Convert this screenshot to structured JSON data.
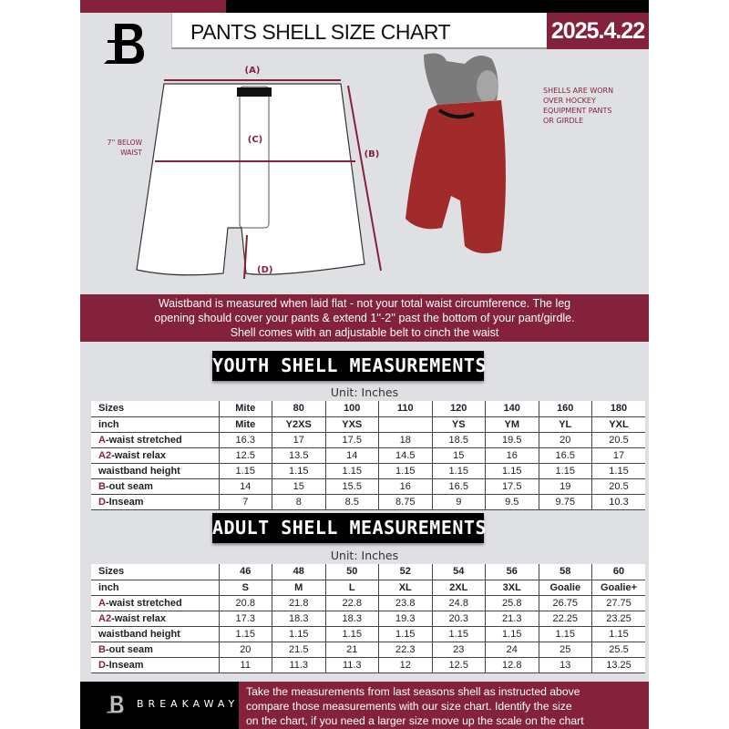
{
  "header": {
    "title": "PANTS SHELL SIZE CHART",
    "date": "2025.4.22",
    "brand": "BREAKAWAY"
  },
  "diagram": {
    "label_a": "(A)",
    "label_b": "(B)",
    "label_c": "(C)",
    "label_d": "(D)",
    "below_waist": [
      "7'' BELOW",
      "WAIST"
    ]
  },
  "photo_note": [
    "SHELLS ARE WORN",
    "OVER HOCKEY",
    "EQUIPMENT PANTS",
    "OR GIRDLE"
  ],
  "band_text": [
    "Waistband is measured when laid flat - not your total waist circumference. The leg",
    "opening should cover your pants & extend 1''-2'' past the bottom of your pant/girdle.",
    "Shell comes with an adjustable belt to cinch the waist"
  ],
  "youth": {
    "title": "YOUTH SHELL MEASUREMENTS",
    "unit": "Unit: Inches",
    "rows": [
      {
        "prefix": "",
        "label": "Sizes",
        "values": [
          "Mite",
          "80",
          "100",
          "110",
          "120",
          "140",
          "160",
          "180"
        ]
      },
      {
        "prefix": "",
        "label": "inch",
        "values": [
          "Mite",
          "Y2XS",
          "YXS",
          "",
          "YS",
          "YM",
          "YL",
          "YXL"
        ]
      },
      {
        "prefix": "A",
        "label": "-waist stretched",
        "values": [
          "16.3",
          "17",
          "17.5",
          "18",
          "18.5",
          "19.5",
          "20",
          "20.5"
        ]
      },
      {
        "prefix": "A2",
        "label": "-waist relax",
        "values": [
          "12.5",
          "13.5",
          "14",
          "14.5",
          "15",
          "16",
          "16.5",
          "17"
        ]
      },
      {
        "prefix": "",
        "label": "waistband height",
        "values": [
          "1.15",
          "1.15",
          "1.15",
          "1.15",
          "1.15",
          "1.15",
          "1.15",
          "1.15"
        ]
      },
      {
        "prefix": "B",
        "label": "-out seam",
        "values": [
          "14",
          "15",
          "15.5",
          "16",
          "16.5",
          "17.5",
          "19",
          "20.5"
        ]
      },
      {
        "prefix": "D",
        "label": "-Inseam",
        "values": [
          "7",
          "8",
          "8.5",
          "8.75",
          "9",
          "9.5",
          "9.75",
          "10.3"
        ]
      }
    ]
  },
  "adult": {
    "title": "ADULT SHELL MEASUREMENTS",
    "unit": "Unit: Inches",
    "rows": [
      {
        "prefix": "",
        "label": "Sizes",
        "values": [
          "46",
          "48",
          "50",
          "52",
          "54",
          "56",
          "58",
          "60"
        ]
      },
      {
        "prefix": "",
        "label": "inch",
        "values": [
          "S",
          "M",
          "L",
          "XL",
          "2XL",
          "3XL",
          "Goalie",
          "Goalie+"
        ]
      },
      {
        "prefix": "A",
        "label": "-waist stretched",
        "values": [
          "20.8",
          "21.8",
          "22.8",
          "23.8",
          "24.8",
          "25.8",
          "26.75",
          "27.75"
        ]
      },
      {
        "prefix": "A2",
        "label": "-waist relax",
        "values": [
          "17.3",
          "18.3",
          "18.3",
          "19.3",
          "20.3",
          "21.3",
          "22.25",
          "23.25"
        ]
      },
      {
        "prefix": "",
        "label": "waistband height",
        "values": [
          "1.15",
          "1.15",
          "1.15",
          "1.15",
          "1.15",
          "1.15",
          "1.15",
          "1.15"
        ]
      },
      {
        "prefix": "B",
        "label": "-out seam",
        "values": [
          "20",
          "21.5",
          "21",
          "22.3",
          "23",
          "24",
          "25",
          "25.5"
        ]
      },
      {
        "prefix": "D",
        "label": "-Inseam",
        "values": [
          "11",
          "11.3",
          "11.3",
          "12",
          "12.5",
          "12.8",
          "13",
          "13.25"
        ]
      }
    ]
  },
  "footer_text": [
    "Take the measurements from last seasons shell as instructed above",
    "compare those measurements  with our size chart. Identify the size",
    "on the chart, if you need a larger size move up the scale on the chart"
  ],
  "colors": {
    "accent": "#84223c",
    "panel": "#dfe0e3",
    "dark": "#000000"
  }
}
